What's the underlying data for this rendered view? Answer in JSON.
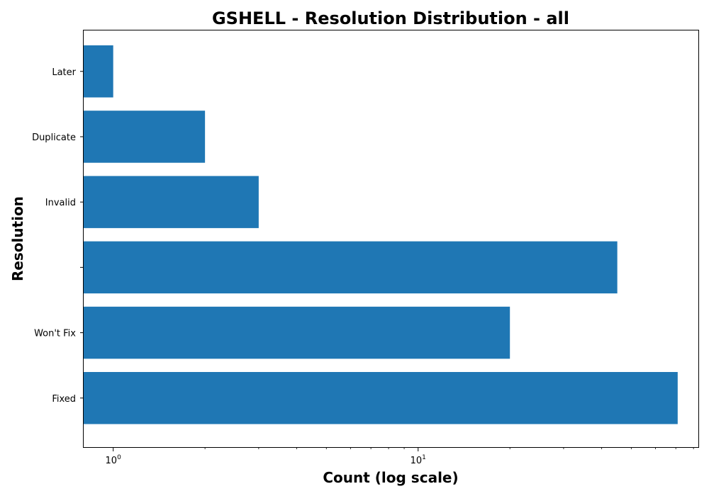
{
  "chart_data": {
    "type": "bar",
    "orientation": "horizontal",
    "title": "GSHELL - Resolution Distribution - all",
    "xlabel": "Count (log scale)",
    "ylabel": "Resolution",
    "x_scale": "log",
    "xlim": [
      0.8,
      83
    ],
    "x_ticks": [
      {
        "value": 1,
        "base": "10",
        "exp": "0"
      },
      {
        "value": 10,
        "base": "10",
        "exp": "1"
      }
    ],
    "categories": [
      "Fixed",
      "Won't Fix",
      "",
      "Invalid",
      "Duplicate",
      "Later"
    ],
    "values": [
      71,
      20,
      45,
      3,
      2,
      1
    ],
    "color": "#1f77b4",
    "grid": false,
    "legend": "none"
  }
}
